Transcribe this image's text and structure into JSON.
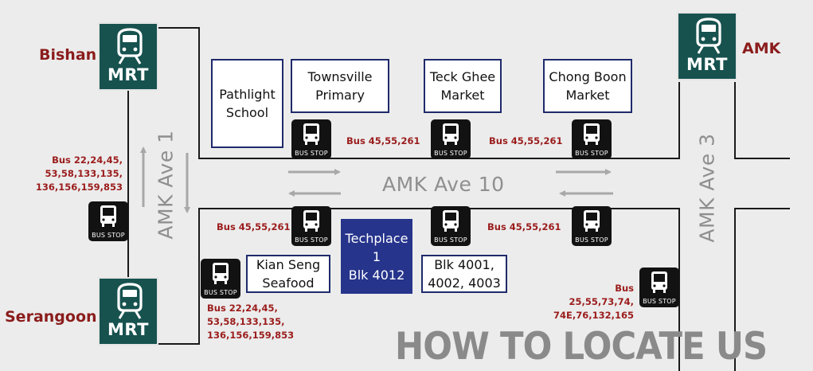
{
  "title": "HOW TO LOCATE US",
  "stations": {
    "bishan": {
      "label": "Bishan",
      "badge": "MRT"
    },
    "serangoon": {
      "label": "Serangoon",
      "badge": "MRT"
    },
    "amk": {
      "label": "AMK",
      "badge": "MRT"
    }
  },
  "roads": {
    "amk_ave_1": "AMK Ave 1",
    "amk_ave_10": "AMK Ave 10",
    "amk_ave_3": "AMK Ave 3"
  },
  "landmarks": {
    "pathlight": "Pathlight\nSchool",
    "townsville": "Townsville\nPrimary",
    "teck_ghee": "Teck Ghee\nMarket",
    "chong_boon": "Chong Boon\nMarket",
    "kian_seng": "Kian Seng\nSeafood",
    "techplace": "Techplace 1\nBlk 4012",
    "blk_4001": "Blk 4001,\n4002, 4003"
  },
  "bus_stop_text": "BUS STOP",
  "bus_labels": {
    "left_mid": "Bus 22,24,45,\n53,58,133,135,\n136,156,159,853",
    "bottom_left": "Bus 22,24,45,\n53,58,133,135,\n136,156,159,853",
    "top_1": "Bus 45,55,261",
    "top_2": "Bus 45,55,261",
    "bottom_1": "Bus 45,55,261",
    "bottom_2": "Bus 45,55,261",
    "right": "Bus 25,55,73,74,\n74E,76,132,165"
  },
  "colors": {
    "mrt_green": "#17524f",
    "station_red": "#8b1c1c",
    "bus_red": "#9b1c1c",
    "highlight_blue": "#26348c",
    "road_black": "#1a1a1a"
  },
  "icons": [
    "train-icon",
    "bus-icon",
    "arrow-icon"
  ]
}
